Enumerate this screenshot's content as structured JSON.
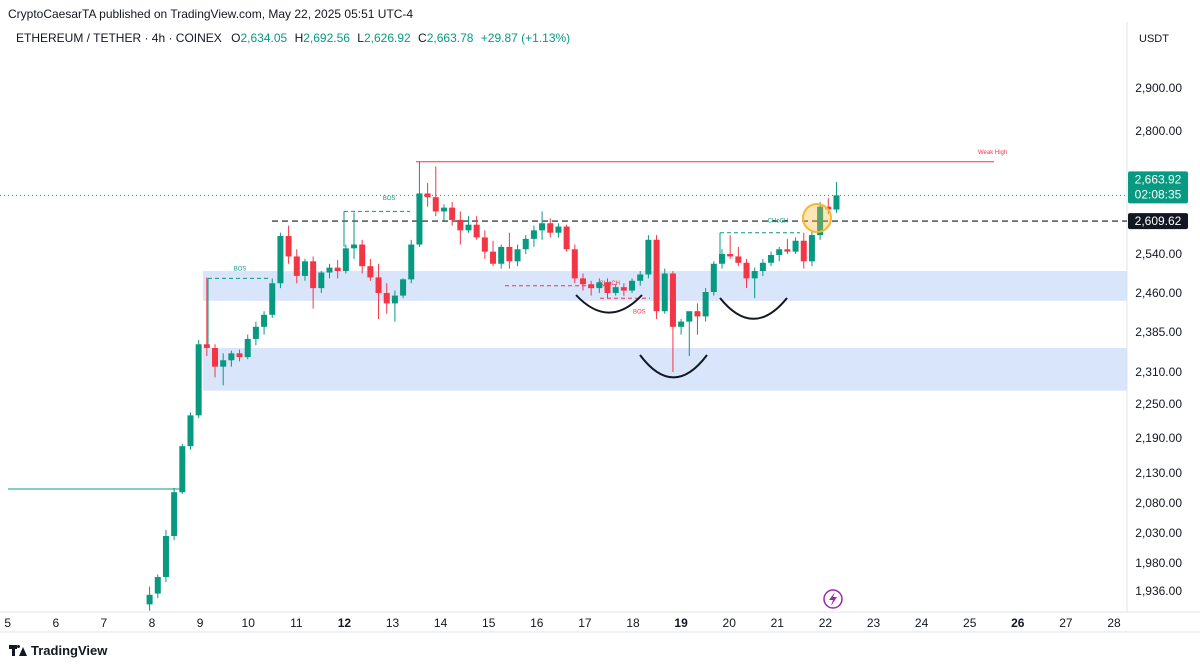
{
  "header": {
    "publisher": "CryptoCaesarTA published on TradingView.com, May 22, 2025 05:51 UTC-4",
    "symbol": "ETHEREUM / TETHER · 4h · COINEX",
    "o_label": "O",
    "o_value": "2,634.05",
    "h_label": "H",
    "h_value": "2,692.56",
    "l_label": "L",
    "l_value": "2,626.92",
    "c_label": "C",
    "c_value": "2,663.78",
    "change": "+29.87 (+1.13%)"
  },
  "axis": {
    "currency": "USDT"
  },
  "branding": {
    "logo_icon": "tradingview-logo-icon",
    "text": "TradingView"
  },
  "colors": {
    "up": "#089981",
    "down": "#f23645",
    "zone": "#d6e4fb",
    "weak_high": "#f23645",
    "dashed_level": "#131722",
    "annotation_circle": "#f7b733"
  },
  "chart_data": {
    "type": "candlestick",
    "title": "ETHEREUM / TETHER · 4h · COINEX",
    "y_ticks": [
      2900,
      2800,
      2540,
      2460,
      2385,
      2310,
      2250,
      2190,
      2130,
      2080,
      2030,
      1980,
      1936
    ],
    "y_tick_labels": [
      "2,900.00",
      "2,800.00",
      "2,540.00",
      "2,460.00",
      "2,385.00",
      "2,310.00",
      "2,250.00",
      "2,190.00",
      "2,130.00",
      "2,080.00",
      "2,030.00",
      "1,980.00",
      "1,936.00"
    ],
    "x_tick_labels": [
      "5",
      "6",
      "7",
      "8",
      "9",
      "10",
      "11",
      "12",
      "13",
      "14",
      "15",
      "16",
      "17",
      "18",
      "19",
      "20",
      "21",
      "22",
      "23",
      "24",
      "25",
      "26",
      "27",
      "28"
    ],
    "x_ticks_bold": [
      "12",
      "19",
      "26"
    ],
    "price_label_current": "2,663.92",
    "price_label_countdown": "02:08:35",
    "price_label_level": "2,609.62",
    "current_price": 2663.92,
    "level_price": 2609.62,
    "weak_high_price": 2735,
    "weak_high_label": "Weak High",
    "zones": [
      {
        "name": "upper-demand-zone",
        "top": 2505,
        "bottom": 2445
      },
      {
        "name": "lower-demand-zone",
        "top": 2355,
        "bottom": 2275
      }
    ],
    "structure_labels": [
      {
        "text": "BOS",
        "color": "#089981",
        "price": 2500,
        "day": 9.7
      },
      {
        "text": "BOS",
        "color": "#089981",
        "price": 2648,
        "day": 12.8
      },
      {
        "text": "CHoCH",
        "color": "#f23645",
        "price": 2470,
        "day": 17.3
      },
      {
        "text": "BOS",
        "color": "#f23645",
        "price": 2415,
        "day": 18.0
      },
      {
        "text": "CHoCH",
        "color": "#089981",
        "price": 2600,
        "day": 20.8
      }
    ],
    "candles": [
      {
        "d": 7.95,
        "o": 1915,
        "h": 1943,
        "l": 1905,
        "c": 1930
      },
      {
        "d": 8.12,
        "o": 1932,
        "h": 1962,
        "l": 1925,
        "c": 1958
      },
      {
        "d": 8.29,
        "o": 1958,
        "h": 2035,
        "l": 1950,
        "c": 2025
      },
      {
        "d": 8.46,
        "o": 2025,
        "h": 2105,
        "l": 2018,
        "c": 2098
      },
      {
        "d": 8.63,
        "o": 2098,
        "h": 2180,
        "l": 2095,
        "c": 2176
      },
      {
        "d": 8.8,
        "o": 2176,
        "h": 2235,
        "l": 2170,
        "c": 2230
      },
      {
        "d": 8.97,
        "o": 2230,
        "h": 2370,
        "l": 2225,
        "c": 2362
      },
      {
        "d": 9.14,
        "o": 2362,
        "h": 2492,
        "l": 2340,
        "c": 2355
      },
      {
        "d": 9.31,
        "o": 2355,
        "h": 2362,
        "l": 2300,
        "c": 2320
      },
      {
        "d": 9.48,
        "o": 2320,
        "h": 2345,
        "l": 2285,
        "c": 2332
      },
      {
        "d": 9.65,
        "o": 2332,
        "h": 2350,
        "l": 2320,
        "c": 2345
      },
      {
        "d": 9.82,
        "o": 2345,
        "h": 2352,
        "l": 2330,
        "c": 2338
      },
      {
        "d": 9.99,
        "o": 2338,
        "h": 2380,
        "l": 2334,
        "c": 2372
      },
      {
        "d": 10.16,
        "o": 2372,
        "h": 2405,
        "l": 2360,
        "c": 2395
      },
      {
        "d": 10.33,
        "o": 2395,
        "h": 2425,
        "l": 2380,
        "c": 2418
      },
      {
        "d": 10.5,
        "o": 2418,
        "h": 2490,
        "l": 2412,
        "c": 2480
      },
      {
        "d": 10.67,
        "o": 2480,
        "h": 2585,
        "l": 2470,
        "c": 2578
      },
      {
        "d": 10.84,
        "o": 2578,
        "h": 2600,
        "l": 2520,
        "c": 2535
      },
      {
        "d": 11.01,
        "o": 2535,
        "h": 2550,
        "l": 2480,
        "c": 2495
      },
      {
        "d": 11.18,
        "o": 2495,
        "h": 2530,
        "l": 2485,
        "c": 2525
      },
      {
        "d": 11.35,
        "o": 2525,
        "h": 2535,
        "l": 2430,
        "c": 2470
      },
      {
        "d": 11.52,
        "o": 2470,
        "h": 2505,
        "l": 2460,
        "c": 2502
      },
      {
        "d": 11.69,
        "o": 2502,
        "h": 2520,
        "l": 2490,
        "c": 2512
      },
      {
        "d": 11.86,
        "o": 2512,
        "h": 2528,
        "l": 2490,
        "c": 2505
      },
      {
        "d": 12.03,
        "o": 2505,
        "h": 2560,
        "l": 2500,
        "c": 2552
      },
      {
        "d": 12.2,
        "o": 2552,
        "h": 2628,
        "l": 2530,
        "c": 2560
      },
      {
        "d": 12.37,
        "o": 2560,
        "h": 2570,
        "l": 2500,
        "c": 2515
      },
      {
        "d": 12.54,
        "o": 2515,
        "h": 2530,
        "l": 2485,
        "c": 2492
      },
      {
        "d": 12.71,
        "o": 2492,
        "h": 2520,
        "l": 2410,
        "c": 2460
      },
      {
        "d": 12.88,
        "o": 2460,
        "h": 2480,
        "l": 2420,
        "c": 2440
      },
      {
        "d": 13.05,
        "o": 2440,
        "h": 2465,
        "l": 2405,
        "c": 2455
      },
      {
        "d": 13.22,
        "o": 2455,
        "h": 2490,
        "l": 2450,
        "c": 2488
      },
      {
        "d": 13.39,
        "o": 2488,
        "h": 2570,
        "l": 2480,
        "c": 2560
      },
      {
        "d": 13.56,
        "o": 2560,
        "h": 2735,
        "l": 2555,
        "c": 2668
      },
      {
        "d": 13.73,
        "o": 2668,
        "h": 2690,
        "l": 2640,
        "c": 2660
      },
      {
        "d": 13.9,
        "o": 2660,
        "h": 2725,
        "l": 2620,
        "c": 2630
      },
      {
        "d": 14.07,
        "o": 2630,
        "h": 2645,
        "l": 2610,
        "c": 2638
      },
      {
        "d": 14.24,
        "o": 2638,
        "h": 2650,
        "l": 2600,
        "c": 2612
      },
      {
        "d": 14.41,
        "o": 2612,
        "h": 2630,
        "l": 2560,
        "c": 2590
      },
      {
        "d": 14.58,
        "o": 2590,
        "h": 2620,
        "l": 2585,
        "c": 2602
      },
      {
        "d": 14.75,
        "o": 2602,
        "h": 2620,
        "l": 2570,
        "c": 2575
      },
      {
        "d": 14.92,
        "o": 2575,
        "h": 2590,
        "l": 2530,
        "c": 2545
      },
      {
        "d": 15.09,
        "o": 2545,
        "h": 2568,
        "l": 2515,
        "c": 2520
      },
      {
        "d": 15.26,
        "o": 2520,
        "h": 2560,
        "l": 2510,
        "c": 2555
      },
      {
        "d": 15.43,
        "o": 2555,
        "h": 2585,
        "l": 2510,
        "c": 2525
      },
      {
        "d": 15.6,
        "o": 2525,
        "h": 2560,
        "l": 2515,
        "c": 2550
      },
      {
        "d": 15.77,
        "o": 2550,
        "h": 2580,
        "l": 2540,
        "c": 2572
      },
      {
        "d": 15.94,
        "o": 2572,
        "h": 2600,
        "l": 2555,
        "c": 2590
      },
      {
        "d": 16.11,
        "o": 2590,
        "h": 2630,
        "l": 2570,
        "c": 2605
      },
      {
        "d": 16.28,
        "o": 2605,
        "h": 2615,
        "l": 2575,
        "c": 2585
      },
      {
        "d": 16.45,
        "o": 2585,
        "h": 2605,
        "l": 2575,
        "c": 2598
      },
      {
        "d": 16.62,
        "o": 2598,
        "h": 2602,
        "l": 2545,
        "c": 2550
      },
      {
        "d": 16.79,
        "o": 2550,
        "h": 2560,
        "l": 2480,
        "c": 2490
      },
      {
        "d": 16.96,
        "o": 2490,
        "h": 2500,
        "l": 2465,
        "c": 2478
      },
      {
        "d": 17.13,
        "o": 2478,
        "h": 2485,
        "l": 2455,
        "c": 2470
      },
      {
        "d": 17.3,
        "o": 2470,
        "h": 2490,
        "l": 2460,
        "c": 2482
      },
      {
        "d": 17.47,
        "o": 2482,
        "h": 2490,
        "l": 2450,
        "c": 2460
      },
      {
        "d": 17.64,
        "o": 2460,
        "h": 2478,
        "l": 2455,
        "c": 2472
      },
      {
        "d": 17.81,
        "o": 2472,
        "h": 2480,
        "l": 2455,
        "c": 2465
      },
      {
        "d": 17.98,
        "o": 2465,
        "h": 2490,
        "l": 2460,
        "c": 2485
      },
      {
        "d": 18.15,
        "o": 2485,
        "h": 2505,
        "l": 2475,
        "c": 2498
      },
      {
        "d": 18.32,
        "o": 2498,
        "h": 2580,
        "l": 2490,
        "c": 2570
      },
      {
        "d": 18.49,
        "o": 2570,
        "h": 2580,
        "l": 2410,
        "c": 2425
      },
      {
        "d": 18.66,
        "o": 2425,
        "h": 2510,
        "l": 2420,
        "c": 2500
      },
      {
        "d": 18.83,
        "o": 2500,
        "h": 2505,
        "l": 2310,
        "c": 2395
      },
      {
        "d": 19.0,
        "o": 2395,
        "h": 2410,
        "l": 2380,
        "c": 2405
      },
      {
        "d": 19.17,
        "o": 2405,
        "h": 2420,
        "l": 2340,
        "c": 2425
      },
      {
        "d": 19.34,
        "o": 2425,
        "h": 2440,
        "l": 2380,
        "c": 2415
      },
      {
        "d": 19.51,
        "o": 2415,
        "h": 2470,
        "l": 2405,
        "c": 2462
      },
      {
        "d": 19.68,
        "o": 2462,
        "h": 2525,
        "l": 2455,
        "c": 2520
      },
      {
        "d": 19.85,
        "o": 2520,
        "h": 2550,
        "l": 2510,
        "c": 2540
      },
      {
        "d": 20.02,
        "o": 2540,
        "h": 2580,
        "l": 2530,
        "c": 2535
      },
      {
        "d": 20.19,
        "o": 2535,
        "h": 2555,
        "l": 2515,
        "c": 2522
      },
      {
        "d": 20.36,
        "o": 2522,
        "h": 2530,
        "l": 2470,
        "c": 2490
      },
      {
        "d": 20.53,
        "o": 2490,
        "h": 2512,
        "l": 2450,
        "c": 2505
      },
      {
        "d": 20.7,
        "o": 2505,
        "h": 2530,
        "l": 2495,
        "c": 2522
      },
      {
        "d": 20.87,
        "o": 2522,
        "h": 2545,
        "l": 2515,
        "c": 2538
      },
      {
        "d": 21.04,
        "o": 2538,
        "h": 2555,
        "l": 2525,
        "c": 2550
      },
      {
        "d": 21.21,
        "o": 2550,
        "h": 2572,
        "l": 2540,
        "c": 2545
      },
      {
        "d": 21.38,
        "o": 2545,
        "h": 2575,
        "l": 2540,
        "c": 2568
      },
      {
        "d": 21.55,
        "o": 2568,
        "h": 2585,
        "l": 2510,
        "c": 2525
      },
      {
        "d": 21.72,
        "o": 2525,
        "h": 2590,
        "l": 2515,
        "c": 2580
      },
      {
        "d": 21.89,
        "o": 2580,
        "h": 2650,
        "l": 2570,
        "c": 2640
      },
      {
        "d": 22.06,
        "o": 2640,
        "h": 2658,
        "l": 2625,
        "c": 2634
      },
      {
        "d": 22.23,
        "o": 2634,
        "h": 2692,
        "l": 2627,
        "c": 2664
      }
    ]
  }
}
